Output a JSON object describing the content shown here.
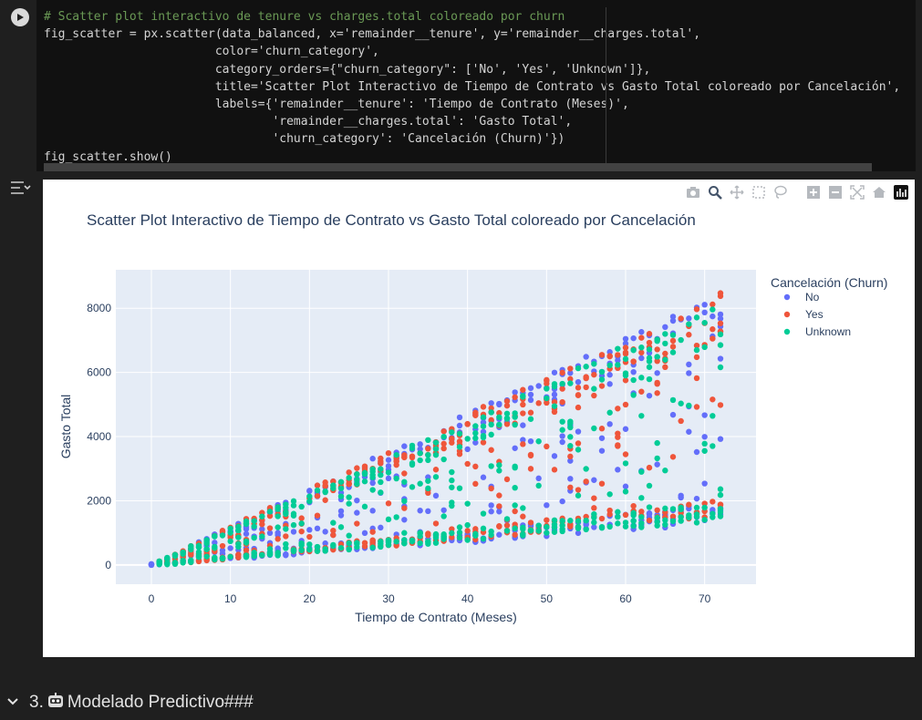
{
  "code_cell": {
    "lines": [
      "# Scatter plot interactivo de tenure vs charges.total coloreado por churn",
      "fig_scatter = px.scatter(data_balanced, x='remainder__tenure', y='remainder__charges.total',",
      "                        color='churn_category',",
      "                        category_orders={\"churn_category\": ['No', 'Yes', 'Unknown']},",
      "                        title='Scatter Plot Interactivo de Tiempo de Contrato vs Gasto Total coloreado por Cancelación',",
      "                        labels={'remainder__tenure': 'Tiempo de Contrato (Meses)',",
      "                                'remainder__charges.total': 'Gasto Total',",
      "                                'churn_category': 'Cancelación (Churn)'})",
      "fig_scatter.show()"
    ]
  },
  "modebar": [
    "camera-icon",
    "zoom-icon",
    "pan-icon",
    "box-select-icon",
    "lasso-select-icon",
    "zoom-in-icon",
    "zoom-out-icon",
    "autoscale-icon",
    "reset-axes-icon",
    "plotly-logo-icon"
  ],
  "chart_data": {
    "type": "scatter",
    "title": "Scatter Plot Interactivo de Tiempo de Contrato vs Gasto Total coloreado por Cancelación",
    "xlabel": "Tiempo de Contrato (Meses)",
    "ylabel": "Gasto Total",
    "xlim": [
      -4.5,
      76.5
    ],
    "ylim": [
      -600,
      9200
    ],
    "x_ticks": [
      0,
      10,
      20,
      30,
      40,
      50,
      60,
      70
    ],
    "y_ticks": [
      0,
      2000,
      4000,
      6000,
      8000
    ],
    "grid": true,
    "legend_title": "Cancelación (Churn)",
    "legend_position": "top-right",
    "series": [
      {
        "name": "No",
        "color": "#636efa",
        "x_range": [
          0,
          72
        ],
        "y_min_per_month": 18,
        "y_max_per_month": 118
      },
      {
        "name": "Yes",
        "color": "#ef553b",
        "x_range": [
          1,
          72
        ],
        "y_min_per_month": 20,
        "y_max_per_month": 118
      },
      {
        "name": "Unknown",
        "color": "#00cc96",
        "x_range": [
          1,
          72
        ],
        "y_min_per_month": 19,
        "y_max_per_month": 114
      }
    ]
  },
  "section": {
    "chevron": "chevron-down-icon",
    "number": "3.",
    "emoji": "robot-emoji-icon",
    "title": "Modelado Predictivo###"
  }
}
